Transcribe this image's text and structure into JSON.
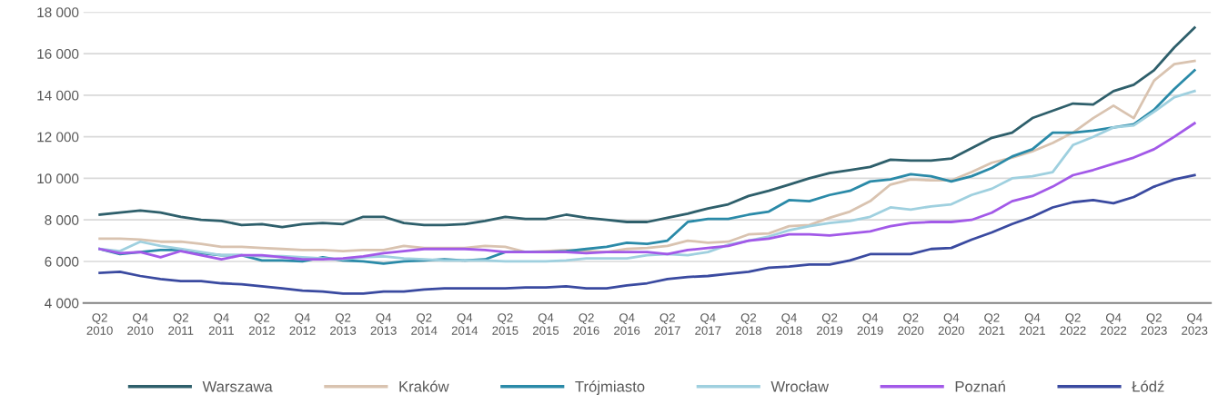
{
  "chart_data": {
    "type": "line",
    "categories": [
      "Q2\n2010",
      null,
      "Q4\n2010",
      null,
      "Q2\n2011",
      null,
      "Q4\n2011",
      null,
      "Q2\n2012",
      null,
      "Q4\n2012",
      null,
      "Q2\n2013",
      null,
      "Q4\n2013",
      null,
      "Q2\n2014",
      null,
      "Q4\n2014",
      null,
      "Q2\n2015",
      null,
      "Q4\n2015",
      null,
      "Q2\n2016",
      null,
      "Q4\n2016",
      null,
      "Q2\n2017",
      null,
      "Q4\n2017",
      null,
      "Q2\n2018",
      null,
      "Q4\n2018",
      null,
      "Q2\n2019",
      null,
      "Q4\n2019",
      null,
      "Q2\n2020",
      null,
      "Q4\n2020",
      null,
      "Q2\n2021",
      null,
      "Q4\n2021",
      null,
      "Q2\n2022",
      null,
      "Q4\n2022",
      null,
      "Q2\n2023",
      null,
      "Q4\n2023"
    ],
    "series": [
      {
        "name": "Warszawa",
        "color": "#2e5f6b",
        "values": [
          8250,
          8350,
          8450,
          8350,
          8150,
          8000,
          7950,
          7750,
          7800,
          7650,
          7800,
          7850,
          7800,
          8150,
          8150,
          7850,
          7750,
          7750,
          7800,
          7950,
          8150,
          8050,
          8050,
          8250,
          8100,
          8000,
          7900,
          7900,
          8100,
          8300,
          8550,
          8750,
          9150,
          9400,
          9700,
          10000,
          10250,
          10400,
          10550,
          10900,
          10850,
          10850,
          10950,
          11450,
          11950,
          12200,
          12900,
          13250,
          13600,
          13550,
          14200,
          14500,
          15200,
          16300,
          17250
        ]
      },
      {
        "name": "Kraków",
        "color": "#d9c3b0",
        "values": [
          7100,
          7100,
          7050,
          6950,
          6950,
          6850,
          6700,
          6700,
          6650,
          6600,
          6550,
          6550,
          6500,
          6550,
          6550,
          6750,
          6650,
          6650,
          6650,
          6750,
          6700,
          6450,
          6500,
          6550,
          6500,
          6450,
          6600,
          6650,
          6750,
          7000,
          6900,
          6950,
          7300,
          7350,
          7700,
          7750,
          8100,
          8400,
          8900,
          9700,
          9950,
          9900,
          9900,
          10300,
          10750,
          11000,
          11300,
          11700,
          12200,
          12900,
          13500,
          12900,
          14700,
          15500,
          15650
        ]
      },
      {
        "name": "Trójmiasto",
        "color": "#2a8aa8",
        "values": [
          6600,
          6350,
          6450,
          6550,
          6550,
          6400,
          6300,
          6300,
          6050,
          6050,
          6000,
          6200,
          6050,
          6000,
          5900,
          6000,
          6050,
          6100,
          6050,
          6100,
          6450,
          6450,
          6450,
          6500,
          6600,
          6700,
          6900,
          6850,
          7000,
          7900,
          8050,
          8050,
          8250,
          8400,
          8950,
          8900,
          9200,
          9400,
          9850,
          9950,
          10200,
          10100,
          9850,
          10100,
          10500,
          11050,
          11400,
          12200,
          12200,
          12300,
          12450,
          12600,
          13300,
          14300,
          15200
        ]
      },
      {
        "name": "Wrocław",
        "color": "#9fd0df",
        "values": [
          6600,
          6500,
          6950,
          6750,
          6600,
          6450,
          6300,
          6300,
          6250,
          6250,
          6200,
          6150,
          6100,
          6200,
          6250,
          6150,
          6100,
          6050,
          6050,
          6050,
          6000,
          6000,
          6000,
          6050,
          6150,
          6150,
          6150,
          6300,
          6350,
          6300,
          6450,
          6800,
          7000,
          7200,
          7500,
          7700,
          7850,
          7950,
          8150,
          8600,
          8500,
          8650,
          8750,
          9200,
          9500,
          10000,
          10100,
          10300,
          11600,
          12000,
          12450,
          12550,
          13200,
          13900,
          14200
        ]
      },
      {
        "name": "Poznań",
        "color": "#a259e8",
        "values": [
          6600,
          6400,
          6450,
          6200,
          6500,
          6300,
          6100,
          6300,
          6300,
          6200,
          6100,
          6100,
          6150,
          6250,
          6400,
          6500,
          6600,
          6600,
          6600,
          6550,
          6450,
          6450,
          6450,
          6450,
          6400,
          6450,
          6450,
          6450,
          6350,
          6550,
          6650,
          6750,
          7000,
          7100,
          7300,
          7300,
          7250,
          7350,
          7450,
          7700,
          7850,
          7900,
          7900,
          8000,
          8350,
          8900,
          9150,
          9600,
          10150,
          10400,
          10700,
          11000,
          11400,
          12000,
          12650
        ]
      },
      {
        "name": "Łódź",
        "color": "#3a4aa0",
        "values": [
          5450,
          5500,
          5300,
          5150,
          5050,
          5050,
          4950,
          4900,
          4800,
          4700,
          4600,
          4550,
          4450,
          4450,
          4550,
          4550,
          4650,
          4700,
          4700,
          4700,
          4700,
          4750,
          4750,
          4800,
          4700,
          4700,
          4850,
          4950,
          5150,
          5250,
          5300,
          5400,
          5500,
          5700,
          5750,
          5850,
          5850,
          6050,
          6350,
          6350,
          6350,
          6600,
          6650,
          7050,
          7400,
          7800,
          8150,
          8600,
          8850,
          8950,
          8800,
          9100,
          9600,
          9950,
          10150
        ]
      }
    ],
    "ylim": [
      4000,
      18000
    ],
    "yticks": [
      {
        "value": 4000,
        "label": "4 000"
      },
      {
        "value": 6000,
        "label": "6 000"
      },
      {
        "value": 8000,
        "label": "8 000"
      },
      {
        "value": 10000,
        "label": "10 000"
      },
      {
        "value": 12000,
        "label": "12 000"
      },
      {
        "value": 14000,
        "label": "14 000"
      },
      {
        "value": 16000,
        "label": "16 000"
      },
      {
        "value": 18000,
        "label": "18 000"
      }
    ],
    "grid": "y",
    "legend": "bottom",
    "marker": "none",
    "line_style": "solid"
  }
}
